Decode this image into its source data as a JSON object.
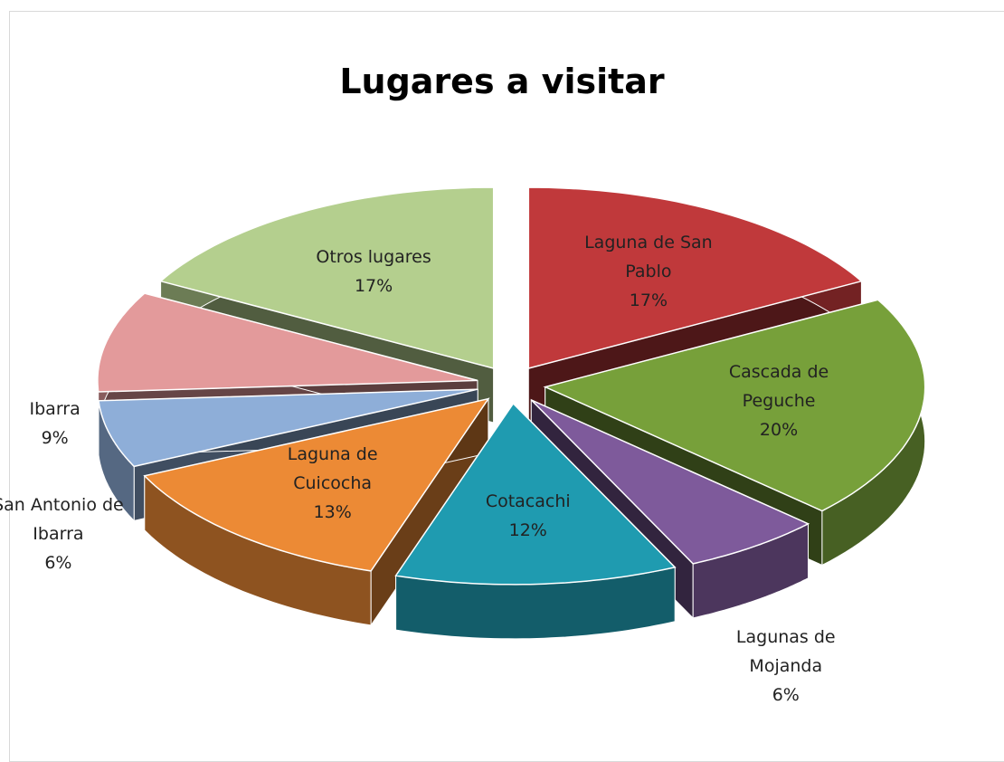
{
  "chart_data": {
    "type": "pie",
    "title": "Lugares a visitar",
    "categories": [
      "Laguna de San Pablo",
      "Cascada de Peguche",
      "Lagunas de Mojanda",
      "Cotacachi",
      "Laguna de Cuicocha",
      "San Antonio de Ibarra",
      "Ibarra",
      "Otros lugares"
    ],
    "values": [
      17,
      20,
      6,
      12,
      13,
      6,
      9,
      17
    ],
    "value_labels": [
      "17%",
      "20%",
      "6%",
      "12%",
      "13%",
      "6%",
      "9%",
      "17%"
    ],
    "colors": [
      "#c0393b",
      "#77a03a",
      "#7e5a9b",
      "#1f9bb0",
      "#ec8a35",
      "#8eaed8",
      "#e39a9b",
      "#b4cf8e"
    ]
  }
}
